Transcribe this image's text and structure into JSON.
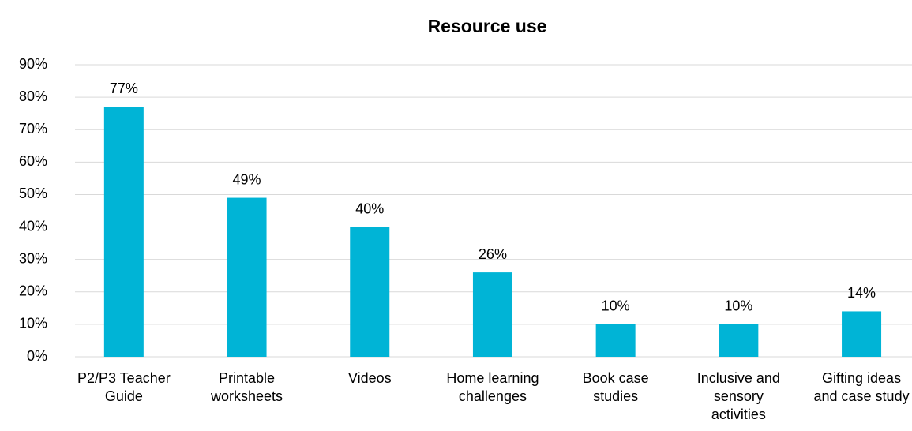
{
  "chart_data": {
    "type": "bar",
    "title": "Resource use",
    "categories": [
      "P2/P3 Teacher Guide",
      "Printable worksheets",
      "Videos",
      "Home learning challenges",
      "Book case studies",
      "Inclusive and sensory activities",
      "Gifting ideas and case study"
    ],
    "values": [
      77,
      49,
      40,
      26,
      10,
      10,
      14
    ],
    "value_labels": [
      "77%",
      "49%",
      "40%",
      "26%",
      "10%",
      "10%",
      "14%"
    ],
    "color": "#00b4d6",
    "ylim": [
      0,
      90
    ],
    "yticks": [
      {
        "value": 0,
        "label": "0%"
      },
      {
        "value": 10,
        "label": "10%"
      },
      {
        "value": 20,
        "label": "20%"
      },
      {
        "value": 30,
        "label": "30%"
      },
      {
        "value": 40,
        "label": "40%"
      },
      {
        "value": 50,
        "label": "50%"
      },
      {
        "value": 60,
        "label": "60%"
      },
      {
        "value": 70,
        "label": "70%"
      },
      {
        "value": 80,
        "label": "80%"
      },
      {
        "value": 90,
        "label": "90%"
      }
    ],
    "grid": true
  }
}
